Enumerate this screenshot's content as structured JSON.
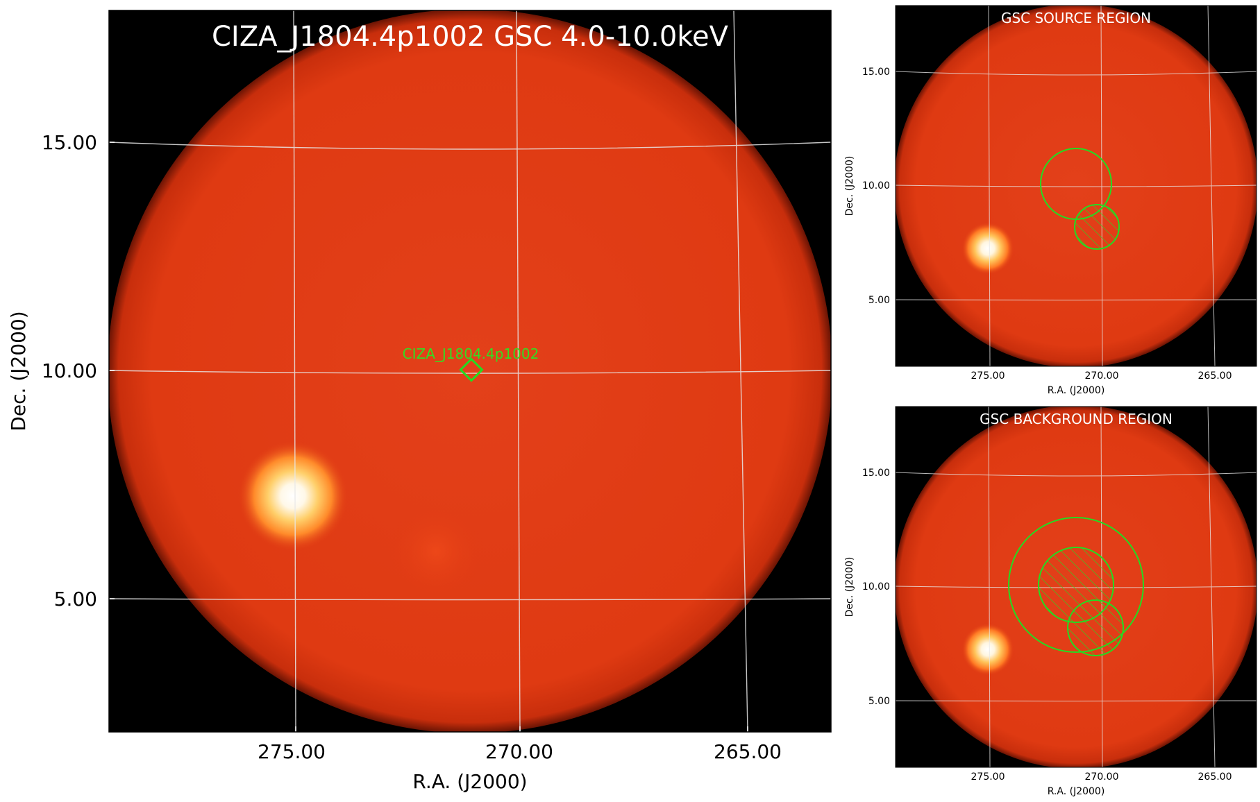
{
  "main_panel": {
    "title": "CIZA_J1804.4p1002 GSC 4.0-10.0keV",
    "source_label": "CIZA_J1804.4p1002",
    "xlabel": "R.A. (J2000)",
    "ylabel": "Dec. (J2000)",
    "x_ticks": [
      "275.00",
      "270.00",
      "265.00"
    ],
    "y_ticks": [
      "15.00",
      "10.00",
      "5.00"
    ]
  },
  "source_panel": {
    "title": "GSC SOURCE REGION",
    "xlabel": "R.A. (J2000)",
    "ylabel": "Dec. (J2000)",
    "x_ticks": [
      "275.00",
      "270.00",
      "265.00"
    ],
    "y_ticks": [
      "15.00",
      "10.00",
      "5.00"
    ]
  },
  "background_panel": {
    "title": "GSC BACKGROUND REGION",
    "xlabel": "R.A. (J2000)",
    "ylabel": "Dec. (J2000)",
    "x_ticks": [
      "275.00",
      "270.00",
      "265.00"
    ],
    "y_ticks": [
      "15.00",
      "10.00",
      "5.00"
    ]
  },
  "colors": {
    "sky_background": "#000000",
    "field_of_view": "#e03a12",
    "bright_source": "#ffffff",
    "region_marker": "#22dd22",
    "grid_line": "#e8e8e8"
  }
}
